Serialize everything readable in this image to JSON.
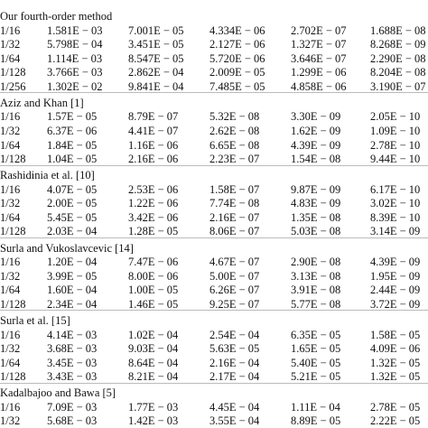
{
  "table": {
    "groups": [
      {
        "title": "Our fourth-order method",
        "rows": [
          [
            "1/16",
            "1.581E − 03",
            "7.001E − 05",
            "4.334E − 06",
            "2.702E − 07",
            "1.688E − 08"
          ],
          [
            "1/32",
            "5.798E − 04",
            "3.451E − 05",
            "2.127E − 06",
            "1.327E − 07",
            "8.268E − 09"
          ],
          [
            "1/64",
            "1.114E − 03",
            "8.547E − 05",
            "5.720E − 06",
            "3.646E − 07",
            "2.290E − 08"
          ],
          [
            "1/128",
            "3.766E − 03",
            "2.862E − 04",
            "2.009E − 05",
            "1.299E − 06",
            "8.204E − 08"
          ],
          [
            "1/256",
            "1.302E − 02",
            "9.841E − 04",
            "7.485E − 05",
            "4.858E − 06",
            "3.190E − 07"
          ]
        ]
      },
      {
        "title": "Aziz and Khan [1]",
        "rows": [
          [
            "1/16",
            "1.57E − 05",
            "8.79E − 07",
            "5.32E − 08",
            "3.30E − 09",
            "2.05E − 10"
          ],
          [
            "1/32",
            "6.37E − 06",
            "4.41E − 07",
            "2.62E − 08",
            "1.62E − 09",
            "1.09E − 10"
          ],
          [
            "1/64",
            "1.84E − 05",
            "1.16E − 06",
            "6.65E − 08",
            "4.39E − 09",
            "2.78E − 10"
          ],
          [
            "1/128",
            "1.04E − 05",
            "2.16E − 06",
            "2.23E − 07",
            "1.54E − 08",
            "9.44E − 10"
          ]
        ]
      },
      {
        "title": "Rashidinia et al. [10]",
        "rows": [
          [
            "1/16",
            "4.07E − 05",
            "2.53E − 06",
            "1.58E − 07",
            "9.87E − 09",
            "6.17E − 10"
          ],
          [
            "1/32",
            "2.00E − 05",
            "1.22E − 06",
            "7.74E − 08",
            "4.83E − 09",
            "3.02E − 10"
          ],
          [
            "1/64",
            "5.45E − 05",
            "3.42E − 06",
            "2.16E − 07",
            "1.35E − 08",
            "8.39E − 10"
          ],
          [
            "1/128",
            "2.03E − 04",
            "1.28E − 05",
            "8.06E − 07",
            "5.03E − 08",
            "3.14E − 09"
          ]
        ]
      },
      {
        "title": "Surla and Vukoslavcevic [14]",
        "rows": [
          [
            "1/16",
            "1.20E − 04",
            "7.47E − 06",
            "4.67E − 07",
            "2.90E − 08",
            "4.39E − 09"
          ],
          [
            "1/32",
            "3.99E − 05",
            "8.00E − 06",
            "5.00E − 07",
            "3.13E − 08",
            "1.95E − 09"
          ],
          [
            "1/64",
            "1.60E − 04",
            "1.00E − 05",
            "6.26E − 07",
            "3.91E − 08",
            "2.44E − 09"
          ],
          [
            "1/128",
            "2.34E − 04",
            "1.46E − 05",
            "9.25E − 07",
            "5.77E − 08",
            "3.72E − 09"
          ]
        ]
      },
      {
        "title": "Surla et al. [15]",
        "rows": [
          [
            "1/16",
            "4.14E − 03",
            "1.02E − 04",
            "2.54E − 04",
            "6.35E − 05",
            "1.58E − 05"
          ],
          [
            "1/32",
            "3.68E − 03",
            "9.03E − 04",
            "5.63E − 05",
            "1.65E − 05",
            "4.09E − 06"
          ],
          [
            "1/64",
            "3.45E − 03",
            "8.64E − 04",
            "2.16E − 04",
            "5.40E − 05",
            "1.32E − 05"
          ],
          [
            "1/128",
            "3.43E − 03",
            "8.21E − 04",
            "2.17E − 04",
            "5.21E − 05",
            "1.32E − 05"
          ]
        ]
      },
      {
        "title": "Kadalbajoo and Bawa [5]",
        "rows": [
          [
            "1/16",
            "7.09E − 03",
            "1.77E − 03",
            "4.45E − 04",
            "1.11E − 04",
            "2.78E − 05"
          ],
          [
            "1/32",
            "5.68E − 03",
            "1.42E − 03",
            "3.55E − 04",
            "8.89E − 05",
            "2.22E − 05"
          ]
        ]
      }
    ]
  }
}
